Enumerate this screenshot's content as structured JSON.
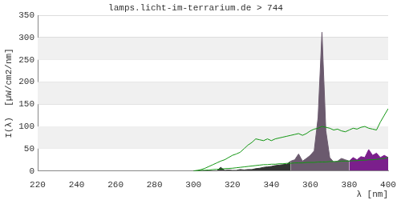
{
  "chart_data": {
    "type": "line",
    "title": "lamps.licht-im-terrarium.de > 744",
    "x_label": "λ [nm]",
    "y_label": "I(λ)  [µW/cm2/nm]",
    "x": [
      300,
      302,
      304,
      306,
      308,
      310,
      312,
      314,
      316,
      318,
      320,
      322,
      324,
      326,
      328,
      330,
      332,
      334,
      336,
      338,
      340,
      342,
      344,
      346,
      348,
      350,
      352,
      354,
      356,
      358,
      360,
      362,
      364,
      366,
      368,
      370,
      372,
      374,
      376,
      378,
      380,
      382,
      384,
      386,
      388,
      390,
      392,
      394,
      396,
      398,
      400
    ],
    "series": [
      {
        "type": "area",
        "color": "#333333",
        "values": [
          0,
          0,
          0,
          0,
          0,
          0,
          0,
          8,
          1,
          2,
          1,
          1,
          3,
          2,
          3,
          3,
          5,
          6,
          8,
          9,
          10,
          12,
          13,
          14,
          15,
          22,
          null,
          null,
          null,
          null,
          null,
          null,
          null,
          null,
          null,
          null,
          null,
          null,
          null,
          null,
          null,
          null,
          null,
          null,
          null,
          null,
          null,
          null,
          null,
          null,
          null
        ]
      },
      {
        "type": "area",
        "color": "#6b5a6e",
        "values": [
          null,
          null,
          null,
          null,
          null,
          null,
          null,
          null,
          null,
          null,
          null,
          null,
          null,
          null,
          null,
          null,
          null,
          null,
          null,
          null,
          null,
          null,
          null,
          null,
          null,
          22,
          25,
          38,
          22,
          28,
          35,
          45,
          120,
          312,
          90,
          30,
          20,
          22,
          28,
          25,
          22,
          null,
          null,
          null,
          null,
          null,
          null,
          null,
          null,
          null,
          null
        ]
      },
      {
        "type": "area",
        "color": "#7b1f8c",
        "values": [
          null,
          null,
          null,
          null,
          null,
          null,
          null,
          null,
          null,
          null,
          null,
          null,
          null,
          null,
          null,
          null,
          null,
          null,
          null,
          null,
          null,
          null,
          null,
          null,
          null,
          null,
          null,
          null,
          null,
          null,
          null,
          null,
          null,
          null,
          null,
          null,
          null,
          null,
          null,
          null,
          22,
          30,
          25,
          32,
          30,
          48,
          35,
          40,
          30,
          35,
          30
        ]
      },
      {
        "type": "line",
        "color": "#129612",
        "values": [
          0,
          1,
          3,
          6,
          10,
          14,
          18,
          22,
          25,
          30,
          35,
          38,
          42,
          50,
          58,
          64,
          72,
          70,
          68,
          72,
          68,
          72,
          74,
          76,
          78,
          80,
          82,
          84,
          80,
          84,
          90,
          94,
          96,
          100,
          98,
          96,
          92,
          94,
          90,
          88,
          92,
          96,
          94,
          98,
          100,
          96,
          94,
          92,
          110,
          125,
          140
        ]
      },
      {
        "type": "line",
        "color": "#129612",
        "values": [
          0,
          0.5,
          1,
          1.5,
          2,
          3,
          3.5,
          4,
          5,
          5.5,
          6,
          7,
          8,
          9,
          10,
          11,
          12,
          13,
          14,
          14,
          15,
          15,
          16,
          16,
          17,
          17,
          18,
          18,
          18,
          19,
          19,
          19,
          20,
          20,
          20,
          21,
          21,
          21,
          22,
          22,
          22,
          23,
          23,
          24,
          24,
          25,
          25,
          26,
          27,
          28,
          30
        ]
      }
    ],
    "xlim": [
      220,
      400
    ],
    "xticks": [
      220,
      240,
      260,
      280,
      300,
      320,
      340,
      360,
      380,
      400
    ],
    "ylim": [
      0,
      350
    ],
    "yticks": [
      0,
      50,
      100,
      150,
      200,
      250,
      300,
      350
    ],
    "grid": true
  }
}
